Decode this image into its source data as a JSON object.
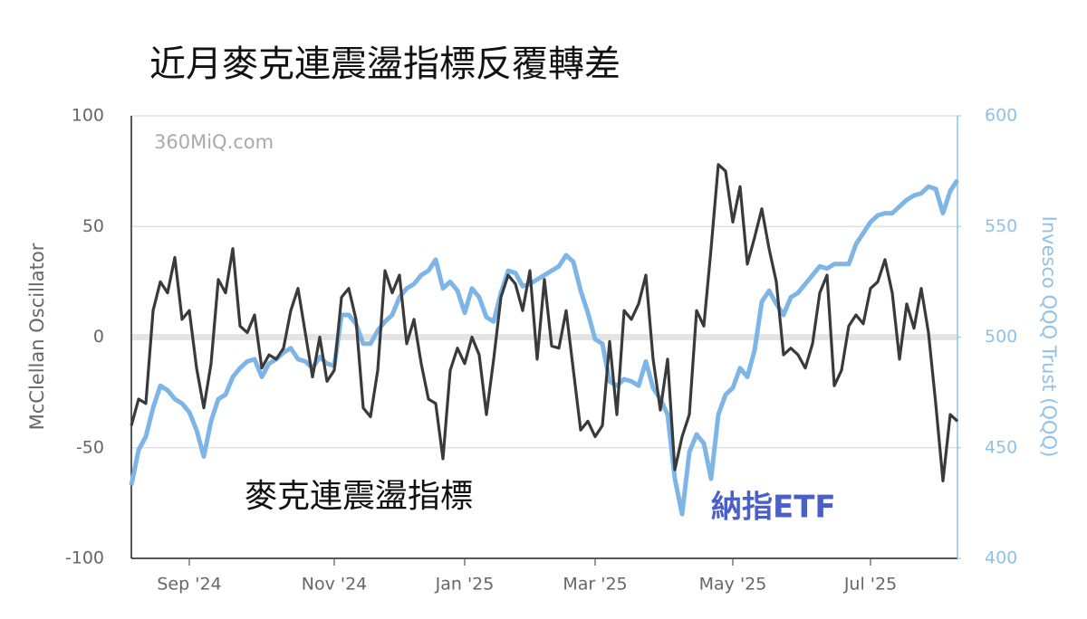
{
  "chart_data": {
    "type": "line",
    "title": "近月麥克連震盪指標反覆轉差",
    "watermark": "360MiQ.com",
    "y_label": "McClellan Oscillator",
    "y2_label": "Invesco QQQ Trust (QQQ)",
    "categories": [
      null,
      null,
      null,
      null,
      null,
      null,
      null,
      null,
      "Sep '24",
      null,
      null,
      null,
      null,
      null,
      null,
      null,
      null,
      null,
      null,
      null,
      null,
      null,
      null,
      null,
      null,
      null,
      null,
      null,
      "Nov '24",
      null,
      null,
      null,
      null,
      null,
      null,
      null,
      null,
      null,
      null,
      null,
      null,
      null,
      null,
      null,
      null,
      null,
      "Jan '25",
      null,
      null,
      null,
      null,
      null,
      null,
      null,
      null,
      null,
      null,
      null,
      null,
      null,
      null,
      null,
      null,
      null,
      "Mar '25",
      null,
      null,
      null,
      null,
      null,
      null,
      null,
      null,
      null,
      null,
      null,
      null,
      null,
      null,
      null,
      null,
      null,
      null,
      "May '25",
      null,
      null,
      null,
      null,
      null,
      null,
      null,
      null,
      null,
      null,
      null,
      null,
      null,
      null,
      null,
      null,
      null,
      null,
      "Jul '25",
      null,
      null,
      null,
      null,
      null,
      null,
      null,
      null,
      null,
      null,
      null,
      null
    ],
    "ylim": [
      -100,
      100
    ],
    "yticks": [
      100,
      50,
      0,
      -50,
      -100
    ],
    "y2lim": [
      400,
      600
    ],
    "y2ticks": [
      600,
      550,
      500,
      450,
      400
    ],
    "grid": true,
    "series": [
      {
        "name": "納指ETF",
        "color": "#7db5e7",
        "axis": "y2",
        "values": [
          433,
          449,
          455,
          468,
          478,
          476,
          472,
          470,
          466,
          458,
          446,
          462,
          472,
          474,
          482,
          486,
          489,
          490,
          482,
          488,
          490,
          493,
          495,
          490,
          489,
          486,
          491,
          488,
          487,
          510,
          510,
          506,
          497,
          497,
          503,
          507,
          510,
          518,
          522,
          524,
          528,
          530,
          535,
          522,
          525,
          521,
          511,
          522,
          518,
          509,
          507,
          520,
          530,
          529,
          523,
          524,
          526,
          528,
          530,
          532,
          537,
          534,
          521,
          511,
          499,
          497,
          480,
          478,
          481,
          480,
          478,
          489,
          477,
          472,
          465,
          436,
          420,
          448,
          456,
          452,
          436,
          465,
          474,
          477,
          486,
          482,
          494,
          516,
          521,
          515,
          510,
          518,
          520,
          524,
          528,
          532,
          531,
          533,
          533,
          533,
          542,
          547,
          552,
          555,
          556,
          556,
          559,
          562,
          564,
          565,
          568,
          567,
          556,
          566,
          571
        ]
      },
      {
        "name": "麥克連震盪指標",
        "color": "#3a3a3c",
        "values": [
          -40,
          -28,
          -30,
          12,
          25,
          20,
          36,
          8,
          12,
          -14,
          -32,
          -12,
          26,
          20,
          40,
          5,
          2,
          10,
          -14,
          -8,
          -10,
          -5,
          12,
          22,
          2,
          -18,
          0,
          -20,
          -15,
          18,
          22,
          8,
          -32,
          -36,
          -15,
          30,
          20,
          28,
          -3,
          8,
          -12,
          -28,
          -30,
          -55,
          -15,
          -5,
          -12,
          0,
          -8,
          -35,
          -10,
          18,
          28,
          24,
          12,
          30,
          -10,
          26,
          -4,
          -5,
          12,
          -15,
          -42,
          -38,
          -45,
          -40,
          -2,
          -35,
          12,
          8,
          15,
          28,
          -10,
          -33,
          -10,
          -60,
          -45,
          -35,
          12,
          5,
          40,
          78,
          75,
          52,
          68,
          33,
          45,
          58,
          40,
          25,
          -8,
          -5,
          -8,
          -14,
          -3,
          20,
          28,
          -22,
          -15,
          5,
          10,
          6,
          22,
          25,
          35,
          20,
          -10,
          15,
          4,
          22,
          2,
          -30,
          -65,
          -35,
          -38
        ]
      }
    ]
  }
}
